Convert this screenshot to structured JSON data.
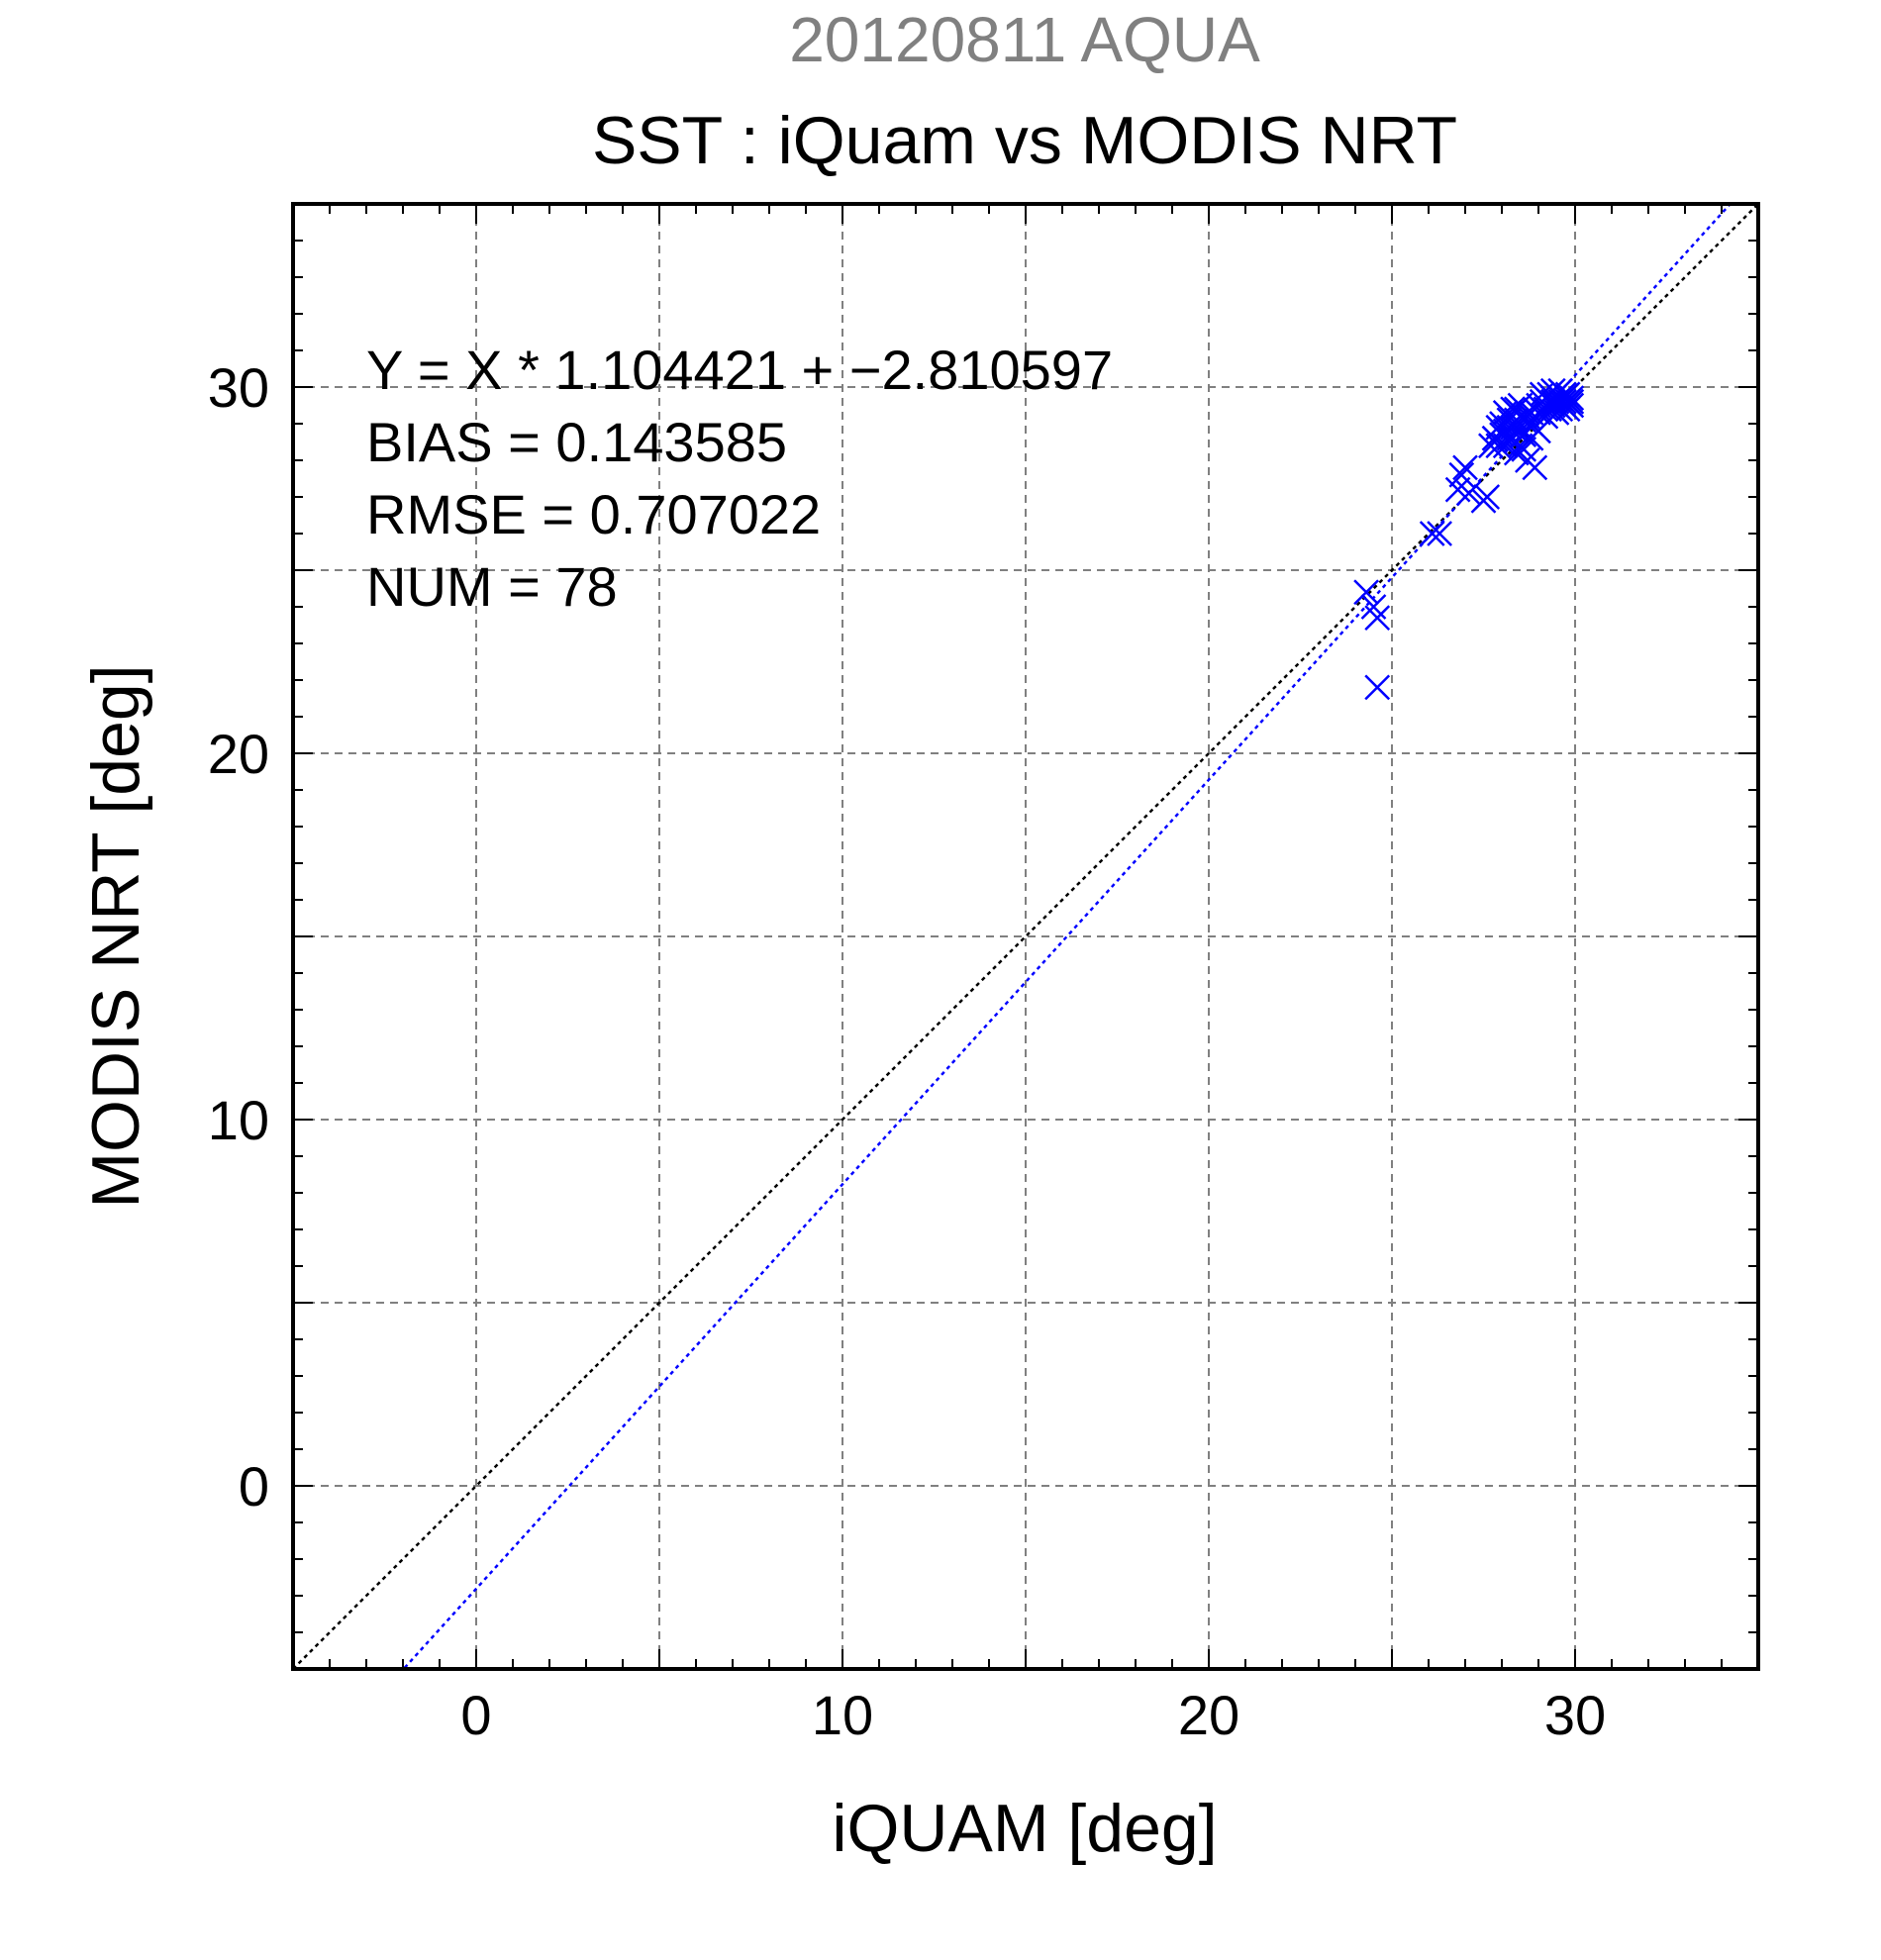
{
  "header": {
    "date_title": "20120811 AQUA",
    "title": "SST : iQuam vs MODIS NRT"
  },
  "stats": {
    "line1": "Y = X * 1.104421 + −2.810597",
    "line2": "BIAS = 0.143585",
    "line3": "RMSE = 0.707022",
    "line4": "NUM = 78"
  },
  "colors": {
    "date_title": "#808080",
    "points": "#0000ff",
    "fit_line": "#0000ff",
    "identity_line": "#000000",
    "grid": "#808080"
  },
  "chart_data": {
    "type": "scatter",
    "xlabel": "iQUAM [deg]",
    "ylabel": "MODIS NRT [deg]",
    "xlim": [
      -5,
      35
    ],
    "ylim": [
      -5,
      35
    ],
    "xticks": [
      0,
      10,
      20,
      30
    ],
    "yticks": [
      0,
      10,
      20,
      30
    ],
    "grid": true,
    "grid_step": 5,
    "marker": "x",
    "fit": {
      "slope": 1.104421,
      "intercept": -2.810597
    },
    "identity_line": true,
    "series": [
      {
        "points": [
          [
            24.3,
            24.4
          ],
          [
            24.5,
            24.0
          ],
          [
            24.6,
            23.7
          ],
          [
            24.6,
            21.8
          ],
          [
            26.1,
            26.0
          ],
          [
            26.3,
            26.0
          ],
          [
            26.8,
            27.2
          ],
          [
            26.9,
            27.6
          ],
          [
            27.1,
            27.1
          ],
          [
            27.0,
            27.8
          ],
          [
            27.5,
            26.9
          ],
          [
            27.6,
            27.0
          ],
          [
            27.7,
            28.4
          ],
          [
            27.8,
            28.6
          ],
          [
            27.9,
            28.4
          ],
          [
            28.0,
            28.7
          ],
          [
            28.0,
            29.0
          ],
          [
            28.1,
            28.4
          ],
          [
            28.1,
            29.3
          ],
          [
            28.2,
            28.6
          ],
          [
            28.2,
            28.9
          ],
          [
            28.3,
            28.6
          ],
          [
            28.3,
            29.4
          ],
          [
            28.4,
            28.2
          ],
          [
            28.4,
            28.8
          ],
          [
            28.4,
            29.1
          ],
          [
            28.5,
            28.4
          ],
          [
            28.5,
            29.5
          ],
          [
            28.6,
            28.7
          ],
          [
            28.6,
            29.1
          ],
          [
            28.7,
            28.0
          ],
          [
            28.7,
            29.3
          ],
          [
            28.8,
            28.6
          ],
          [
            28.8,
            29.0
          ],
          [
            28.9,
            29.4
          ],
          [
            28.9,
            27.8
          ],
          [
            29.0,
            29.3
          ],
          [
            29.0,
            28.8
          ],
          [
            29.1,
            29.6
          ],
          [
            29.2,
            29.2
          ],
          [
            29.2,
            29.7
          ],
          [
            29.3,
            29.4
          ],
          [
            29.3,
            29.8
          ],
          [
            29.4,
            29.5
          ],
          [
            29.4,
            29.9
          ],
          [
            29.5,
            29.6
          ],
          [
            29.5,
            29.3
          ],
          [
            29.6,
            29.7
          ],
          [
            29.6,
            29.9
          ],
          [
            29.7,
            29.5
          ],
          [
            29.7,
            29.8
          ],
          [
            29.8,
            29.6
          ],
          [
            29.8,
            29.4
          ],
          [
            29.9,
            29.7
          ],
          [
            29.9,
            29.5
          ],
          [
            29.6,
            29.4
          ],
          [
            29.5,
            29.8
          ],
          [
            29.4,
            29.6
          ],
          [
            28.3,
            28.9
          ],
          [
            28.5,
            28.8
          ],
          [
            28.7,
            29.2
          ],
          [
            28.1,
            28.8
          ],
          [
            27.9,
            28.9
          ],
          [
            28.6,
            28.3
          ],
          [
            28.8,
            29.3
          ],
          [
            29.0,
            29.5
          ],
          [
            29.2,
            29.4
          ],
          [
            29.3,
            29.6
          ],
          [
            29.1,
            29.8
          ],
          [
            28.4,
            29.4
          ],
          [
            28.2,
            29.1
          ],
          [
            27.8,
            28.6
          ],
          [
            29.7,
            29.6
          ],
          [
            29.8,
            29.8
          ],
          [
            29.6,
            29.6
          ],
          [
            29.9,
            29.6
          ],
          [
            29.5,
            29.5
          ],
          [
            29.4,
            29.7
          ]
        ]
      }
    ]
  }
}
